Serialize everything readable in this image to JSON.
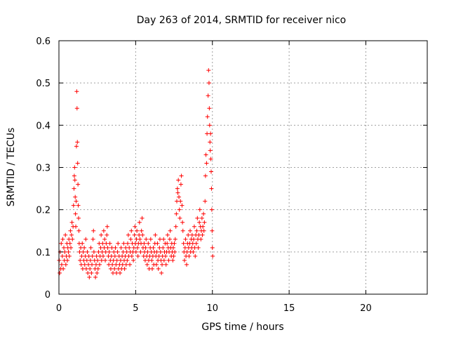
{
  "chart_data": {
    "type": "scatter",
    "title": "Day 263 of 2014, SRMTID for receiver nico",
    "xlabel": "GPS time / hours",
    "ylabel": "SRMTID / TECUs",
    "xlim": [
      0,
      24
    ],
    "ylim": [
      0,
      0.6
    ],
    "xticks": [
      0,
      5,
      10,
      15,
      20
    ],
    "xtick_labels": [
      "0",
      "5",
      "10",
      "15",
      "20"
    ],
    "yticks": [
      0,
      0.1,
      0.2,
      0.3,
      0.4,
      0.5,
      0.6
    ],
    "ytick_labels": [
      "0",
      "0.1",
      "0.2",
      "0.3",
      "0.4",
      "0.5",
      "0.6"
    ],
    "grid": true,
    "marker": "+",
    "color": "#ff0000",
    "series": [
      {
        "name": "SRMTID",
        "x": [
          0.02,
          0.05,
          0.08,
          0.12,
          0.15,
          0.18,
          0.22,
          0.25,
          0.28,
          0.32,
          0.35,
          0.38,
          0.42,
          0.45,
          0.48,
          0.52,
          0.55,
          0.58,
          0.62,
          0.65,
          0.68,
          0.72,
          0.75,
          0.78,
          0.82,
          0.85,
          0.88,
          0.92,
          0.95,
          0.98,
          1.0,
          1.02,
          1.04,
          1.06,
          1.08,
          1.1,
          1.12,
          1.14,
          1.16,
          1.18,
          1.2,
          1.22,
          1.24,
          1.26,
          1.28,
          1.3,
          1.32,
          1.35,
          1.38,
          1.42,
          1.45,
          1.48,
          1.52,
          1.55,
          1.58,
          1.62,
          1.65,
          1.68,
          1.72,
          1.75,
          1.78,
          1.82,
          1.85,
          1.88,
          1.92,
          1.95,
          1.98,
          2.02,
          2.05,
          2.08,
          2.12,
          2.15,
          2.18,
          2.22,
          2.25,
          2.28,
          2.32,
          2.35,
          2.38,
          2.42,
          2.45,
          2.48,
          2.52,
          2.55,
          2.58,
          2.62,
          2.65,
          2.68,
          2.72,
          2.75,
          2.78,
          2.82,
          2.85,
          2.88,
          2.92,
          2.95,
          2.98,
          3.02,
          3.05,
          3.08,
          3.12,
          3.15,
          3.18,
          3.22,
          3.25,
          3.28,
          3.32,
          3.35,
          3.38,
          3.42,
          3.45,
          3.48,
          3.52,
          3.55,
          3.58,
          3.62,
          3.65,
          3.68,
          3.72,
          3.75,
          3.78,
          3.82,
          3.85,
          3.88,
          3.92,
          3.95,
          3.98,
          4.02,
          4.05,
          4.08,
          4.12,
          4.15,
          4.18,
          4.22,
          4.25,
          4.28,
          4.32,
          4.35,
          4.38,
          4.42,
          4.45,
          4.48,
          4.52,
          4.55,
          4.58,
          4.62,
          4.65,
          4.68,
          4.72,
          4.75,
          4.78,
          4.82,
          4.85,
          4.88,
          4.92,
          4.95,
          4.98,
          5.02,
          5.05,
          5.08,
          5.12,
          5.15,
          5.18,
          5.22,
          5.25,
          5.28,
          5.32,
          5.35,
          5.38,
          5.42,
          5.45,
          5.48,
          5.52,
          5.55,
          5.58,
          5.62,
          5.65,
          5.68,
          5.72,
          5.75,
          5.78,
          5.82,
          5.85,
          5.88,
          5.92,
          5.95,
          5.98,
          6.02,
          6.05,
          6.08,
          6.12,
          6.15,
          6.18,
          6.22,
          6.25,
          6.28,
          6.32,
          6.35,
          6.38,
          6.42,
          6.45,
          6.48,
          6.52,
          6.55,
          6.58,
          6.62,
          6.65,
          6.68,
          6.72,
          6.75,
          6.78,
          6.82,
          6.85,
          6.88,
          6.92,
          6.95,
          6.98,
          7.02,
          7.05,
          7.08,
          7.12,
          7.15,
          7.18,
          7.22,
          7.25,
          7.28,
          7.32,
          7.35,
          7.38,
          7.42,
          7.45,
          7.48,
          7.52,
          7.55,
          7.58,
          7.62,
          7.65,
          7.68,
          7.72,
          7.75,
          7.78,
          7.82,
          7.85,
          7.88,
          7.92,
          7.95,
          7.98,
          8.02,
          8.05,
          8.08,
          8.12,
          8.15,
          8.18,
          8.22,
          8.25,
          8.28,
          8.32,
          8.35,
          8.38,
          8.42,
          8.45,
          8.48,
          8.52,
          8.55,
          8.58,
          8.62,
          8.65,
          8.68,
          8.72,
          8.75,
          8.78,
          8.82,
          8.85,
          8.88,
          8.92,
          8.95,
          8.98,
          9.02,
          9.05,
          9.08,
          9.12,
          9.15,
          9.18,
          9.22,
          9.25,
          9.28,
          9.32,
          9.35,
          9.38,
          9.42,
          9.45,
          9.48,
          9.52,
          9.55,
          9.58,
          9.62,
          9.65,
          9.68,
          9.72,
          9.75,
          9.78,
          9.8,
          9.82,
          9.84,
          9.86,
          9.88,
          9.9,
          9.92,
          9.94,
          9.96,
          9.98,
          10.0,
          10.02
        ],
        "y": [
          0.08,
          0.05,
          0.1,
          0.06,
          0.12,
          0.07,
          0.09,
          0.13,
          0.06,
          0.11,
          0.08,
          0.1,
          0.14,
          0.07,
          0.09,
          0.12,
          0.08,
          0.11,
          0.1,
          0.13,
          0.09,
          0.12,
          0.15,
          0.11,
          0.14,
          0.17,
          0.13,
          0.16,
          0.21,
          0.25,
          0.28,
          0.3,
          0.27,
          0.23,
          0.19,
          0.16,
          0.22,
          0.35,
          0.48,
          0.44,
          0.36,
          0.31,
          0.26,
          0.21,
          0.18,
          0.15,
          0.12,
          0.1,
          0.08,
          0.11,
          0.07,
          0.09,
          0.12,
          0.06,
          0.1,
          0.08,
          0.11,
          0.07,
          0.09,
          0.13,
          0.06,
          0.08,
          0.1,
          0.05,
          0.07,
          0.09,
          0.04,
          0.06,
          0.08,
          0.11,
          0.05,
          0.07,
          0.09,
          0.13,
          0.15,
          0.1,
          0.08,
          0.06,
          0.04,
          0.07,
          0.09,
          0.05,
          0.08,
          0.06,
          0.1,
          0.12,
          0.07,
          0.09,
          0.11,
          0.14,
          0.08,
          0.1,
          0.12,
          0.09,
          0.15,
          0.11,
          0.13,
          0.08,
          0.1,
          0.12,
          0.14,
          0.16,
          0.11,
          0.09,
          0.07,
          0.1,
          0.12,
          0.08,
          0.06,
          0.09,
          0.11,
          0.07,
          0.05,
          0.08,
          0.1,
          0.06,
          0.09,
          0.11,
          0.07,
          0.05,
          0.08,
          0.1,
          0.12,
          0.06,
          0.09,
          0.07,
          0.05,
          0.08,
          0.11,
          0.06,
          0.09,
          0.07,
          0.1,
          0.12,
          0.08,
          0.06,
          0.09,
          0.11,
          0.07,
          0.1,
          0.08,
          0.12,
          0.14,
          0.09,
          0.11,
          0.07,
          0.1,
          0.13,
          0.15,
          0.09,
          0.12,
          0.1,
          0.08,
          0.11,
          0.14,
          0.16,
          0.12,
          0.1,
          0.13,
          0.15,
          0.11,
          0.09,
          0.12,
          0.14,
          0.17,
          0.13,
          0.1,
          0.12,
          0.15,
          0.18,
          0.14,
          0.11,
          0.09,
          0.12,
          0.1,
          0.08,
          0.11,
          0.13,
          0.09,
          0.07,
          0.1,
          0.12,
          0.08,
          0.06,
          0.09,
          0.11,
          0.13,
          0.1,
          0.08,
          0.06,
          0.09,
          0.11,
          0.07,
          0.1,
          0.12,
          0.14,
          0.09,
          0.07,
          0.1,
          0.12,
          0.08,
          0.06,
          0.09,
          0.11,
          0.13,
          0.1,
          0.08,
          0.05,
          0.07,
          0.09,
          0.11,
          0.13,
          0.08,
          0.1,
          0.12,
          0.09,
          0.07,
          0.1,
          0.12,
          0.14,
          0.11,
          0.08,
          0.1,
          0.13,
          0.15,
          0.11,
          0.09,
          0.12,
          0.1,
          0.08,
          0.11,
          0.09,
          0.12,
          0.1,
          0.13,
          0.16,
          0.19,
          0.22,
          0.25,
          0.24,
          0.27,
          0.23,
          0.2,
          0.18,
          0.22,
          0.26,
          0.28,
          0.21,
          0.17,
          0.15,
          0.12,
          0.1,
          0.08,
          0.11,
          0.13,
          0.09,
          0.07,
          0.1,
          0.12,
          0.14,
          0.11,
          0.09,
          0.12,
          0.15,
          0.1,
          0.13,
          0.11,
          0.14,
          0.12,
          0.1,
          0.13,
          0.16,
          0.11,
          0.09,
          0.14,
          0.12,
          0.15,
          0.18,
          0.13,
          0.11,
          0.14,
          0.17,
          0.2,
          0.16,
          0.13,
          0.15,
          0.18,
          0.14,
          0.16,
          0.19,
          0.15,
          0.17,
          0.22,
          0.28,
          0.33,
          0.31,
          0.38,
          0.42,
          0.47,
          0.53,
          0.5,
          0.44,
          0.4,
          0.36,
          0.34,
          0.38,
          0.32,
          0.29,
          0.25,
          0.2,
          0.15,
          0.11,
          0.09
        ]
      }
    ]
  }
}
